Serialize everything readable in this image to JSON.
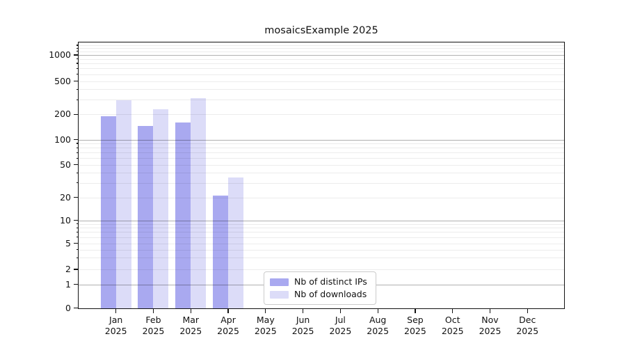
{
  "title": "mosaicsExample 2025",
  "legend": {
    "items": [
      {
        "label": "Nb of distinct IPs",
        "color": "#a9a9f0"
      },
      {
        "label": "Nb of downloads",
        "color": "#dcdcf8"
      }
    ]
  },
  "y_axis": {
    "tick_labels": [
      "1000",
      "500",
      "200",
      "100",
      "50",
      "20",
      "10",
      "5",
      "2",
      "1",
      "0"
    ]
  },
  "x_axis": {
    "months": [
      "Jan",
      "Feb",
      "Mar",
      "Apr",
      "May",
      "Jun",
      "Jul",
      "Aug",
      "Sep",
      "Oct",
      "Nov",
      "Dec"
    ],
    "year": "2025"
  },
  "chart_data": {
    "type": "bar",
    "title": "mosaicsExample 2025",
    "categories": [
      "Jan 2025",
      "Feb 2025",
      "Mar 2025",
      "Apr 2025",
      "May 2025",
      "Jun 2025",
      "Jul 2025",
      "Aug 2025",
      "Sep 2025",
      "Oct 2025",
      "Nov 2025",
      "Dec 2025"
    ],
    "series": [
      {
        "name": "Nb of distinct IPs",
        "color": "#a9a9f0",
        "values": [
          190,
          145,
          160,
          21,
          0,
          0,
          0,
          0,
          0,
          0,
          0,
          0
        ]
      },
      {
        "name": "Nb of downloads",
        "color": "#dcdcf8",
        "values": [
          295,
          230,
          310,
          35,
          0,
          0,
          0,
          0,
          0,
          0,
          0,
          0
        ]
      }
    ],
    "xlabel": "",
    "ylabel": "",
    "y_scale": "symlog",
    "y_ticks": [
      0,
      1,
      2,
      5,
      10,
      20,
      50,
      100,
      200,
      500,
      1000
    ],
    "ylim": [
      0,
      1400
    ],
    "grid": "both",
    "legend_position": "lower center-left inside plot"
  }
}
